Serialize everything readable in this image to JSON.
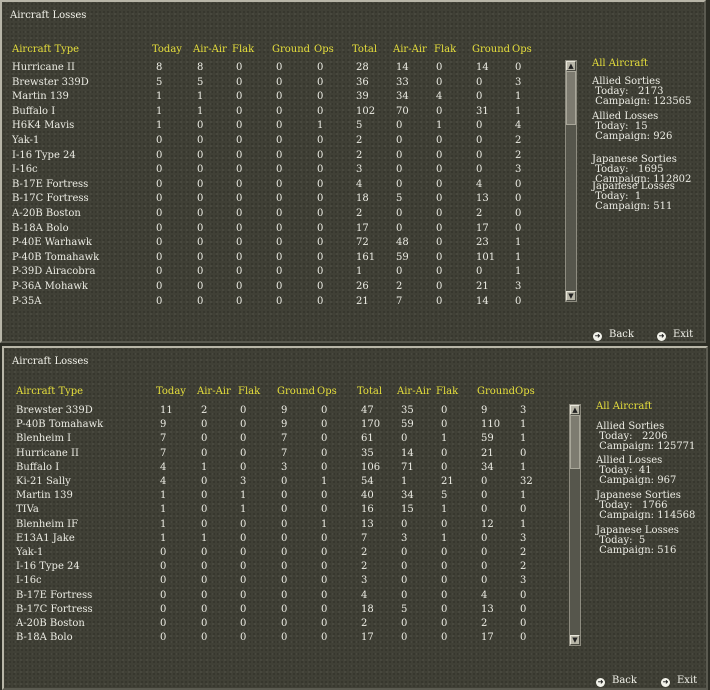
{
  "columns": [
    "Aircraft Type",
    "Today",
    "Air-Air",
    "Flak",
    "Ground",
    "Ops",
    "Total",
    "Air-Air",
    "Flak",
    "Ground",
    "Ops"
  ],
  "panels": [
    {
      "title": "Aircraft Losses",
      "rows": [
        [
          "Hurricane II",
          "8",
          "8",
          "0",
          "0",
          "0",
          "28",
          "14",
          "0",
          "14",
          "0"
        ],
        [
          "Brewster 339D",
          "5",
          "5",
          "0",
          "0",
          "0",
          "36",
          "33",
          "0",
          "0",
          "3"
        ],
        [
          "Martin 139",
          "1",
          "1",
          "0",
          "0",
          "0",
          "39",
          "34",
          "4",
          "0",
          "1"
        ],
        [
          "Buffalo I",
          "1",
          "1",
          "0",
          "0",
          "0",
          "102",
          "70",
          "0",
          "31",
          "1"
        ],
        [
          "H6K4 Mavis",
          "1",
          "0",
          "0",
          "0",
          "1",
          "5",
          "0",
          "1",
          "0",
          "4"
        ],
        [
          "Yak-1",
          "0",
          "0",
          "0",
          "0",
          "0",
          "2",
          "0",
          "0",
          "0",
          "2"
        ],
        [
          "I-16 Type 24",
          "0",
          "0",
          "0",
          "0",
          "0",
          "2",
          "0",
          "0",
          "0",
          "2"
        ],
        [
          "I-16c",
          "0",
          "0",
          "0",
          "0",
          "0",
          "3",
          "0",
          "0",
          "0",
          "3"
        ],
        [
          "B-17E Fortress",
          "0",
          "0",
          "0",
          "0",
          "0",
          "4",
          "0",
          "0",
          "4",
          "0"
        ],
        [
          "B-17C Fortress",
          "0",
          "0",
          "0",
          "0",
          "0",
          "18",
          "5",
          "0",
          "13",
          "0"
        ],
        [
          "A-20B Boston",
          "0",
          "0",
          "0",
          "0",
          "0",
          "2",
          "0",
          "0",
          "2",
          "0"
        ],
        [
          "B-18A Bolo",
          "0",
          "0",
          "0",
          "0",
          "0",
          "17",
          "0",
          "0",
          "17",
          "0"
        ],
        [
          "P-40E Warhawk",
          "0",
          "0",
          "0",
          "0",
          "0",
          "72",
          "48",
          "0",
          "23",
          "1"
        ],
        [
          "P-40B Tomahawk",
          "0",
          "0",
          "0",
          "0",
          "0",
          "161",
          "59",
          "0",
          "101",
          "1"
        ],
        [
          "P-39D Airacobra",
          "0",
          "0",
          "0",
          "0",
          "0",
          "1",
          "0",
          "0",
          "0",
          "1"
        ],
        [
          "P-36A Mohawk",
          "0",
          "0",
          "0",
          "0",
          "0",
          "26",
          "2",
          "0",
          "21",
          "3"
        ],
        [
          "P-35A",
          "0",
          "0",
          "0",
          "0",
          "0",
          "21",
          "7",
          "0",
          "14",
          "0"
        ]
      ],
      "summary": {
        "title": "All Aircraft",
        "allied_sorties": "Allied Sorties\n Today:   2173\n Campaign: 123565",
        "allied_losses": "Allied Losses\n Today:  15\n Campaign: 926",
        "japanese_sorties": "Japanese Sorties\n Today:   1695\n Campaign: 112802",
        "japanese_losses": "Japanese Losses\n Today:  1\n Campaign: 511"
      },
      "back_label": "Back",
      "exit_label": "Exit"
    },
    {
      "title": "Aircraft Losses",
      "rows": [
        [
          "Brewster 339D",
          "11",
          "2",
          "0",
          "9",
          "0",
          "47",
          "35",
          "0",
          "9",
          "3"
        ],
        [
          "P-40B Tomahawk",
          "9",
          "0",
          "0",
          "9",
          "0",
          "170",
          "59",
          "0",
          "110",
          "1"
        ],
        [
          "Blenheim I",
          "7",
          "0",
          "0",
          "7",
          "0",
          "61",
          "0",
          "1",
          "59",
          "1"
        ],
        [
          "Hurricane II",
          "7",
          "0",
          "0",
          "7",
          "0",
          "35",
          "14",
          "0",
          "21",
          "0"
        ],
        [
          "Buffalo I",
          "4",
          "1",
          "0",
          "3",
          "0",
          "106",
          "71",
          "0",
          "34",
          "1"
        ],
        [
          "Ki-21 Sally",
          "4",
          "0",
          "3",
          "0",
          "1",
          "54",
          "1",
          "21",
          "0",
          "32"
        ],
        [
          "Martin 139",
          "1",
          "0",
          "1",
          "0",
          "0",
          "40",
          "34",
          "5",
          "0",
          "1"
        ],
        [
          "TIVa",
          "1",
          "0",
          "1",
          "0",
          "0",
          "16",
          "15",
          "1",
          "0",
          "0"
        ],
        [
          "Blenheim IF",
          "1",
          "0",
          "0",
          "0",
          "1",
          "13",
          "0",
          "0",
          "12",
          "1"
        ],
        [
          "E13A1 Jake",
          "1",
          "1",
          "0",
          "0",
          "0",
          "7",
          "3",
          "1",
          "0",
          "3"
        ],
        [
          "Yak-1",
          "0",
          "0",
          "0",
          "0",
          "0",
          "2",
          "0",
          "0",
          "0",
          "2"
        ],
        [
          "I-16 Type 24",
          "0",
          "0",
          "0",
          "0",
          "0",
          "2",
          "0",
          "0",
          "0",
          "2"
        ],
        [
          "I-16c",
          "0",
          "0",
          "0",
          "0",
          "0",
          "3",
          "0",
          "0",
          "0",
          "3"
        ],
        [
          "B-17E Fortress",
          "0",
          "0",
          "0",
          "0",
          "0",
          "4",
          "0",
          "0",
          "4",
          "0"
        ],
        [
          "B-17C Fortress",
          "0",
          "0",
          "0",
          "0",
          "0",
          "18",
          "5",
          "0",
          "13",
          "0"
        ],
        [
          "A-20B Boston",
          "0",
          "0",
          "0",
          "0",
          "0",
          "2",
          "0",
          "0",
          "2",
          "0"
        ],
        [
          "B-18A Bolo",
          "0",
          "0",
          "0",
          "0",
          "0",
          "17",
          "0",
          "0",
          "17",
          "0"
        ]
      ],
      "summary": {
        "title": "All Aircraft",
        "allied_sorties": "Allied Sorties\n Today:   2206\n Campaign: 125771",
        "allied_losses": "Allied Losses\n Today:  41\n Campaign: 967",
        "japanese_sorties": "Japanese Sorties\n Today:   1766\n Campaign: 114568",
        "japanese_losses": "Japanese Losses\n Today:  5\n Campaign: 516"
      },
      "back_label": "Back",
      "exit_label": "Exit"
    }
  ],
  "icons": {
    "scroll_up": "arrow-up-icon",
    "scroll_down": "arrow-down-icon",
    "back": "back-arrow-icon",
    "exit": "exit-arrow-icon"
  }
}
